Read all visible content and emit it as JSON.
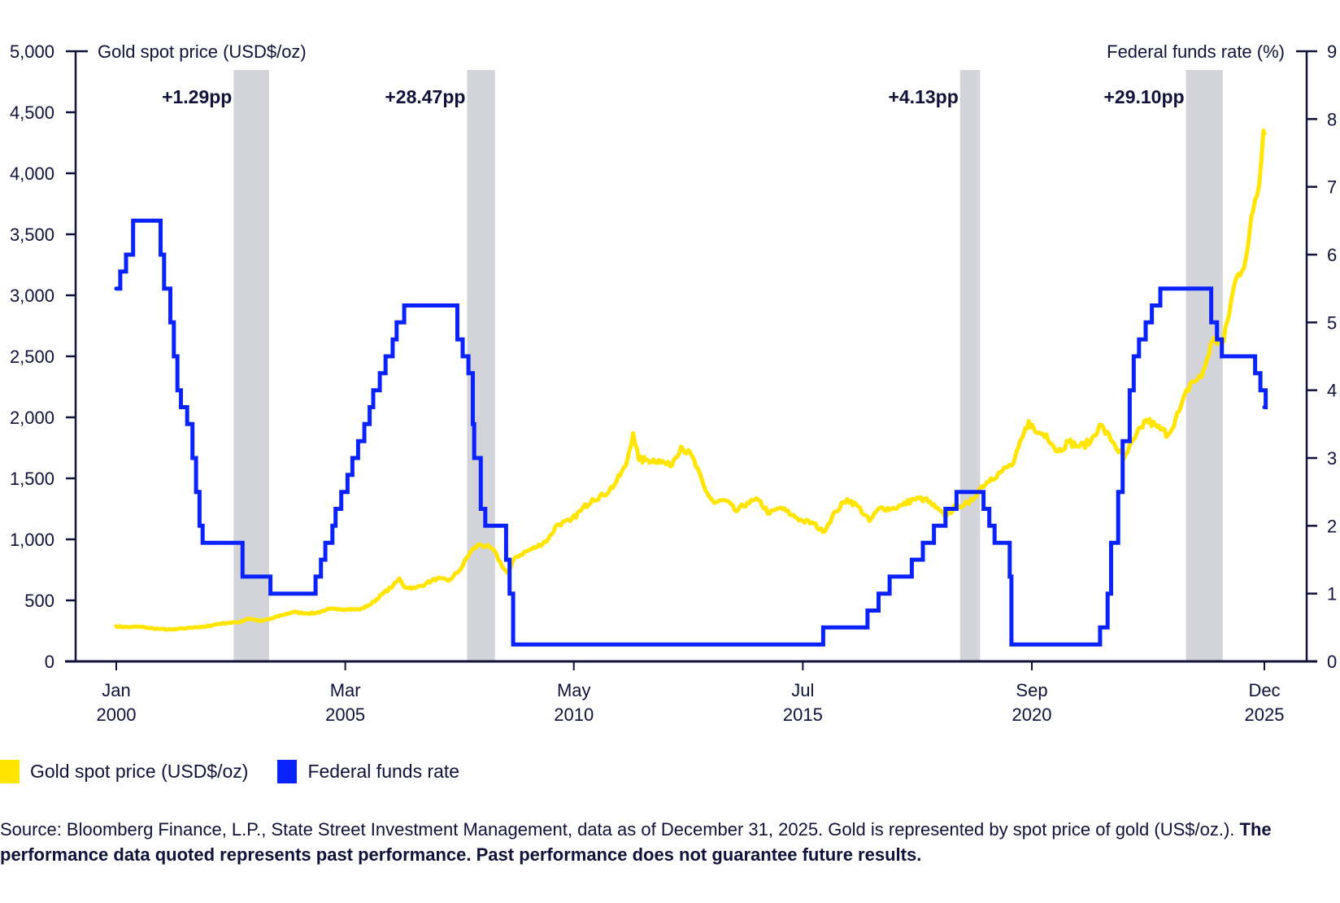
{
  "chart_data": {
    "type": "line",
    "title": "",
    "left_axis": {
      "label": "Gold spot price (USD$/oz)",
      "ylim": [
        0,
        5000
      ],
      "ticks": [
        0,
        500,
        1000,
        1500,
        2000,
        2500,
        3000,
        3500,
        4000,
        4500,
        5000
      ],
      "tick_labels": [
        "0",
        "500",
        "1,000",
        "1,500",
        "2,000",
        "2,500",
        "3,000",
        "3,500",
        "4,000",
        "4,500",
        "5,000"
      ]
    },
    "right_axis": {
      "label": "Federal funds rate (%)",
      "ylim": [
        0,
        9
      ],
      "ticks": [
        0,
        1,
        2,
        3,
        4,
        5,
        6,
        7,
        8,
        9
      ],
      "tick_labels": [
        "0",
        "1",
        "2",
        "3",
        "4",
        "5",
        "6",
        "7",
        "8",
        "9"
      ]
    },
    "x_axis": {
      "xlim": [
        2000.0,
        2025.92
      ],
      "ticks": [
        2000.0,
        2005.17,
        2010.33,
        2015.5,
        2020.67,
        2025.92
      ],
      "tick_labels": [
        [
          "Jan",
          "2000"
        ],
        [
          "Mar",
          "2005"
        ],
        [
          "May",
          "2010"
        ],
        [
          "Jul",
          "2015"
        ],
        [
          "Sep",
          "2020"
        ],
        [
          "Dec",
          "2025"
        ]
      ]
    },
    "shaded_periods": [
      {
        "start": 2002.65,
        "end": 2003.45,
        "label": "+1.29pp"
      },
      {
        "start": 2007.92,
        "end": 2008.55,
        "label": "+28.47pp"
      },
      {
        "start": 2019.05,
        "end": 2019.5,
        "label": "+4.13pp"
      },
      {
        "start": 2024.15,
        "end": 2024.98,
        "label": "+29.10pp"
      }
    ],
    "series": [
      {
        "name": "Gold spot price (USD$/oz)",
        "axis": "left",
        "color": "#FFE500",
        "x": [
          2000.0,
          2000.25,
          2000.5,
          2000.75,
          2001.0,
          2001.25,
          2001.5,
          2001.75,
          2002.0,
          2002.25,
          2002.5,
          2002.75,
          2003.0,
          2003.25,
          2003.5,
          2003.75,
          2004.0,
          2004.25,
          2004.5,
          2004.75,
          2005.0,
          2005.25,
          2005.5,
          2005.75,
          2006.0,
          2006.25,
          2006.4,
          2006.5,
          2006.75,
          2007.0,
          2007.25,
          2007.5,
          2007.75,
          2008.0,
          2008.2,
          2008.5,
          2008.75,
          2008.85,
          2009.0,
          2009.25,
          2009.5,
          2009.75,
          2009.95,
          2010.25,
          2010.5,
          2010.75,
          2011.0,
          2011.25,
          2011.5,
          2011.67,
          2011.8,
          2012.0,
          2012.25,
          2012.5,
          2012.75,
          2013.0,
          2013.3,
          2013.5,
          2013.75,
          2014.0,
          2014.25,
          2014.5,
          2014.75,
          2015.0,
          2015.25,
          2015.5,
          2015.75,
          2015.95,
          2016.25,
          2016.5,
          2016.75,
          2017.0,
          2017.25,
          2017.5,
          2017.75,
          2018.0,
          2018.25,
          2018.5,
          2018.7,
          2019.0,
          2019.25,
          2019.5,
          2019.75,
          2020.0,
          2020.25,
          2020.6,
          2020.75,
          2021.0,
          2021.25,
          2021.5,
          2021.75,
          2022.0,
          2022.2,
          2022.5,
          2022.75,
          2023.0,
          2023.25,
          2023.5,
          2023.75,
          2024.0,
          2024.25,
          2024.5,
          2024.75,
          2025.0,
          2025.25,
          2025.5,
          2025.67,
          2025.8,
          2025.9,
          2025.92
        ],
        "values": [
          288,
          280,
          285,
          273,
          265,
          260,
          268,
          280,
          282,
          305,
          315,
          320,
          352,
          330,
          350,
          380,
          405,
          395,
          395,
          425,
          425,
          430,
          425,
          470,
          550,
          620,
          680,
          610,
          600,
          640,
          680,
          660,
          745,
          900,
          960,
          920,
          760,
          720,
          850,
          900,
          940,
          1000,
          1120,
          1150,
          1240,
          1330,
          1360,
          1450,
          1600,
          1870,
          1650,
          1650,
          1650,
          1600,
          1760,
          1680,
          1400,
          1300,
          1320,
          1230,
          1300,
          1320,
          1210,
          1260,
          1200,
          1150,
          1130,
          1060,
          1230,
          1330,
          1270,
          1150,
          1260,
          1250,
          1280,
          1330,
          1330,
          1260,
          1190,
          1280,
          1290,
          1420,
          1500,
          1560,
          1620,
          1970,
          1880,
          1860,
          1720,
          1800,
          1760,
          1800,
          1940,
          1800,
          1660,
          1830,
          1980,
          1920,
          1860,
          2050,
          2280,
          2330,
          2630,
          2620,
          3100,
          3300,
          3700,
          3900,
          4350,
          4330
        ]
      },
      {
        "name": "Federal funds rate",
        "axis": "right",
        "color": "#0A22FF",
        "step": true,
        "x": [
          2000.0,
          2000.09,
          2000.22,
          2000.38,
          2001.0,
          2001.08,
          2001.22,
          2001.3,
          2001.38,
          2001.46,
          2001.6,
          2001.72,
          2001.8,
          2001.88,
          2001.95,
          2002.85,
          2003.48,
          2004.5,
          2004.62,
          2004.72,
          2004.88,
          2004.95,
          2005.08,
          2005.22,
          2005.33,
          2005.46,
          2005.6,
          2005.72,
          2005.8,
          2005.95,
          2006.08,
          2006.24,
          2006.33,
          2006.5,
          2007.7,
          2007.82,
          2007.95,
          2008.05,
          2008.08,
          2008.23,
          2008.33,
          2008.8,
          2008.88,
          2008.96,
          2015.96,
          2016.96,
          2017.21,
          2017.46,
          2017.96,
          2018.21,
          2018.46,
          2018.72,
          2018.97,
          2019.58,
          2019.71,
          2019.83,
          2020.17,
          2020.21,
          2022.21,
          2022.38,
          2022.46,
          2022.62,
          2022.72,
          2022.88,
          2022.97,
          2023.09,
          2023.24,
          2023.38,
          2023.57,
          2024.72,
          2024.85,
          2024.96,
          2025.71,
          2025.83,
          2025.95
        ],
        "values": [
          5.5,
          5.75,
          6.0,
          6.5,
          6.0,
          5.5,
          5.0,
          4.5,
          4.0,
          3.75,
          3.5,
          3.0,
          2.5,
          2.0,
          1.75,
          1.25,
          1.0,
          1.25,
          1.5,
          1.75,
          2.0,
          2.25,
          2.5,
          2.75,
          3.0,
          3.25,
          3.5,
          3.75,
          4.0,
          4.25,
          4.5,
          4.75,
          5.0,
          5.25,
          4.75,
          4.5,
          4.25,
          3.5,
          3.0,
          2.25,
          2.0,
          1.5,
          1.0,
          0.25,
          0.5,
          0.75,
          1.0,
          1.25,
          1.5,
          1.75,
          2.0,
          2.25,
          2.5,
          2.25,
          2.0,
          1.75,
          1.25,
          0.25,
          0.5,
          1.0,
          1.75,
          2.5,
          3.25,
          4.0,
          4.5,
          4.75,
          5.0,
          5.25,
          5.5,
          5.0,
          4.75,
          4.5,
          4.25,
          4.0,
          3.75
        ]
      }
    ],
    "legend": {
      "placement": "bottom-left",
      "items": [
        {
          "label": "Gold spot price (USD$/oz)",
          "color": "#FFE500"
        },
        {
          "label": "Federal funds rate",
          "color": "#0A22FF"
        }
      ]
    },
    "band_color": "#D2D4D9"
  },
  "source": {
    "text": "Source: Bloomberg Finance, L.P., State Street Investment Management, data as of December 31, 2025. Gold is represented by spot price of gold (US$/oz.). ",
    "disclaimer": "The performance data quoted represents past performance. Past performance does not guarantee future results."
  }
}
